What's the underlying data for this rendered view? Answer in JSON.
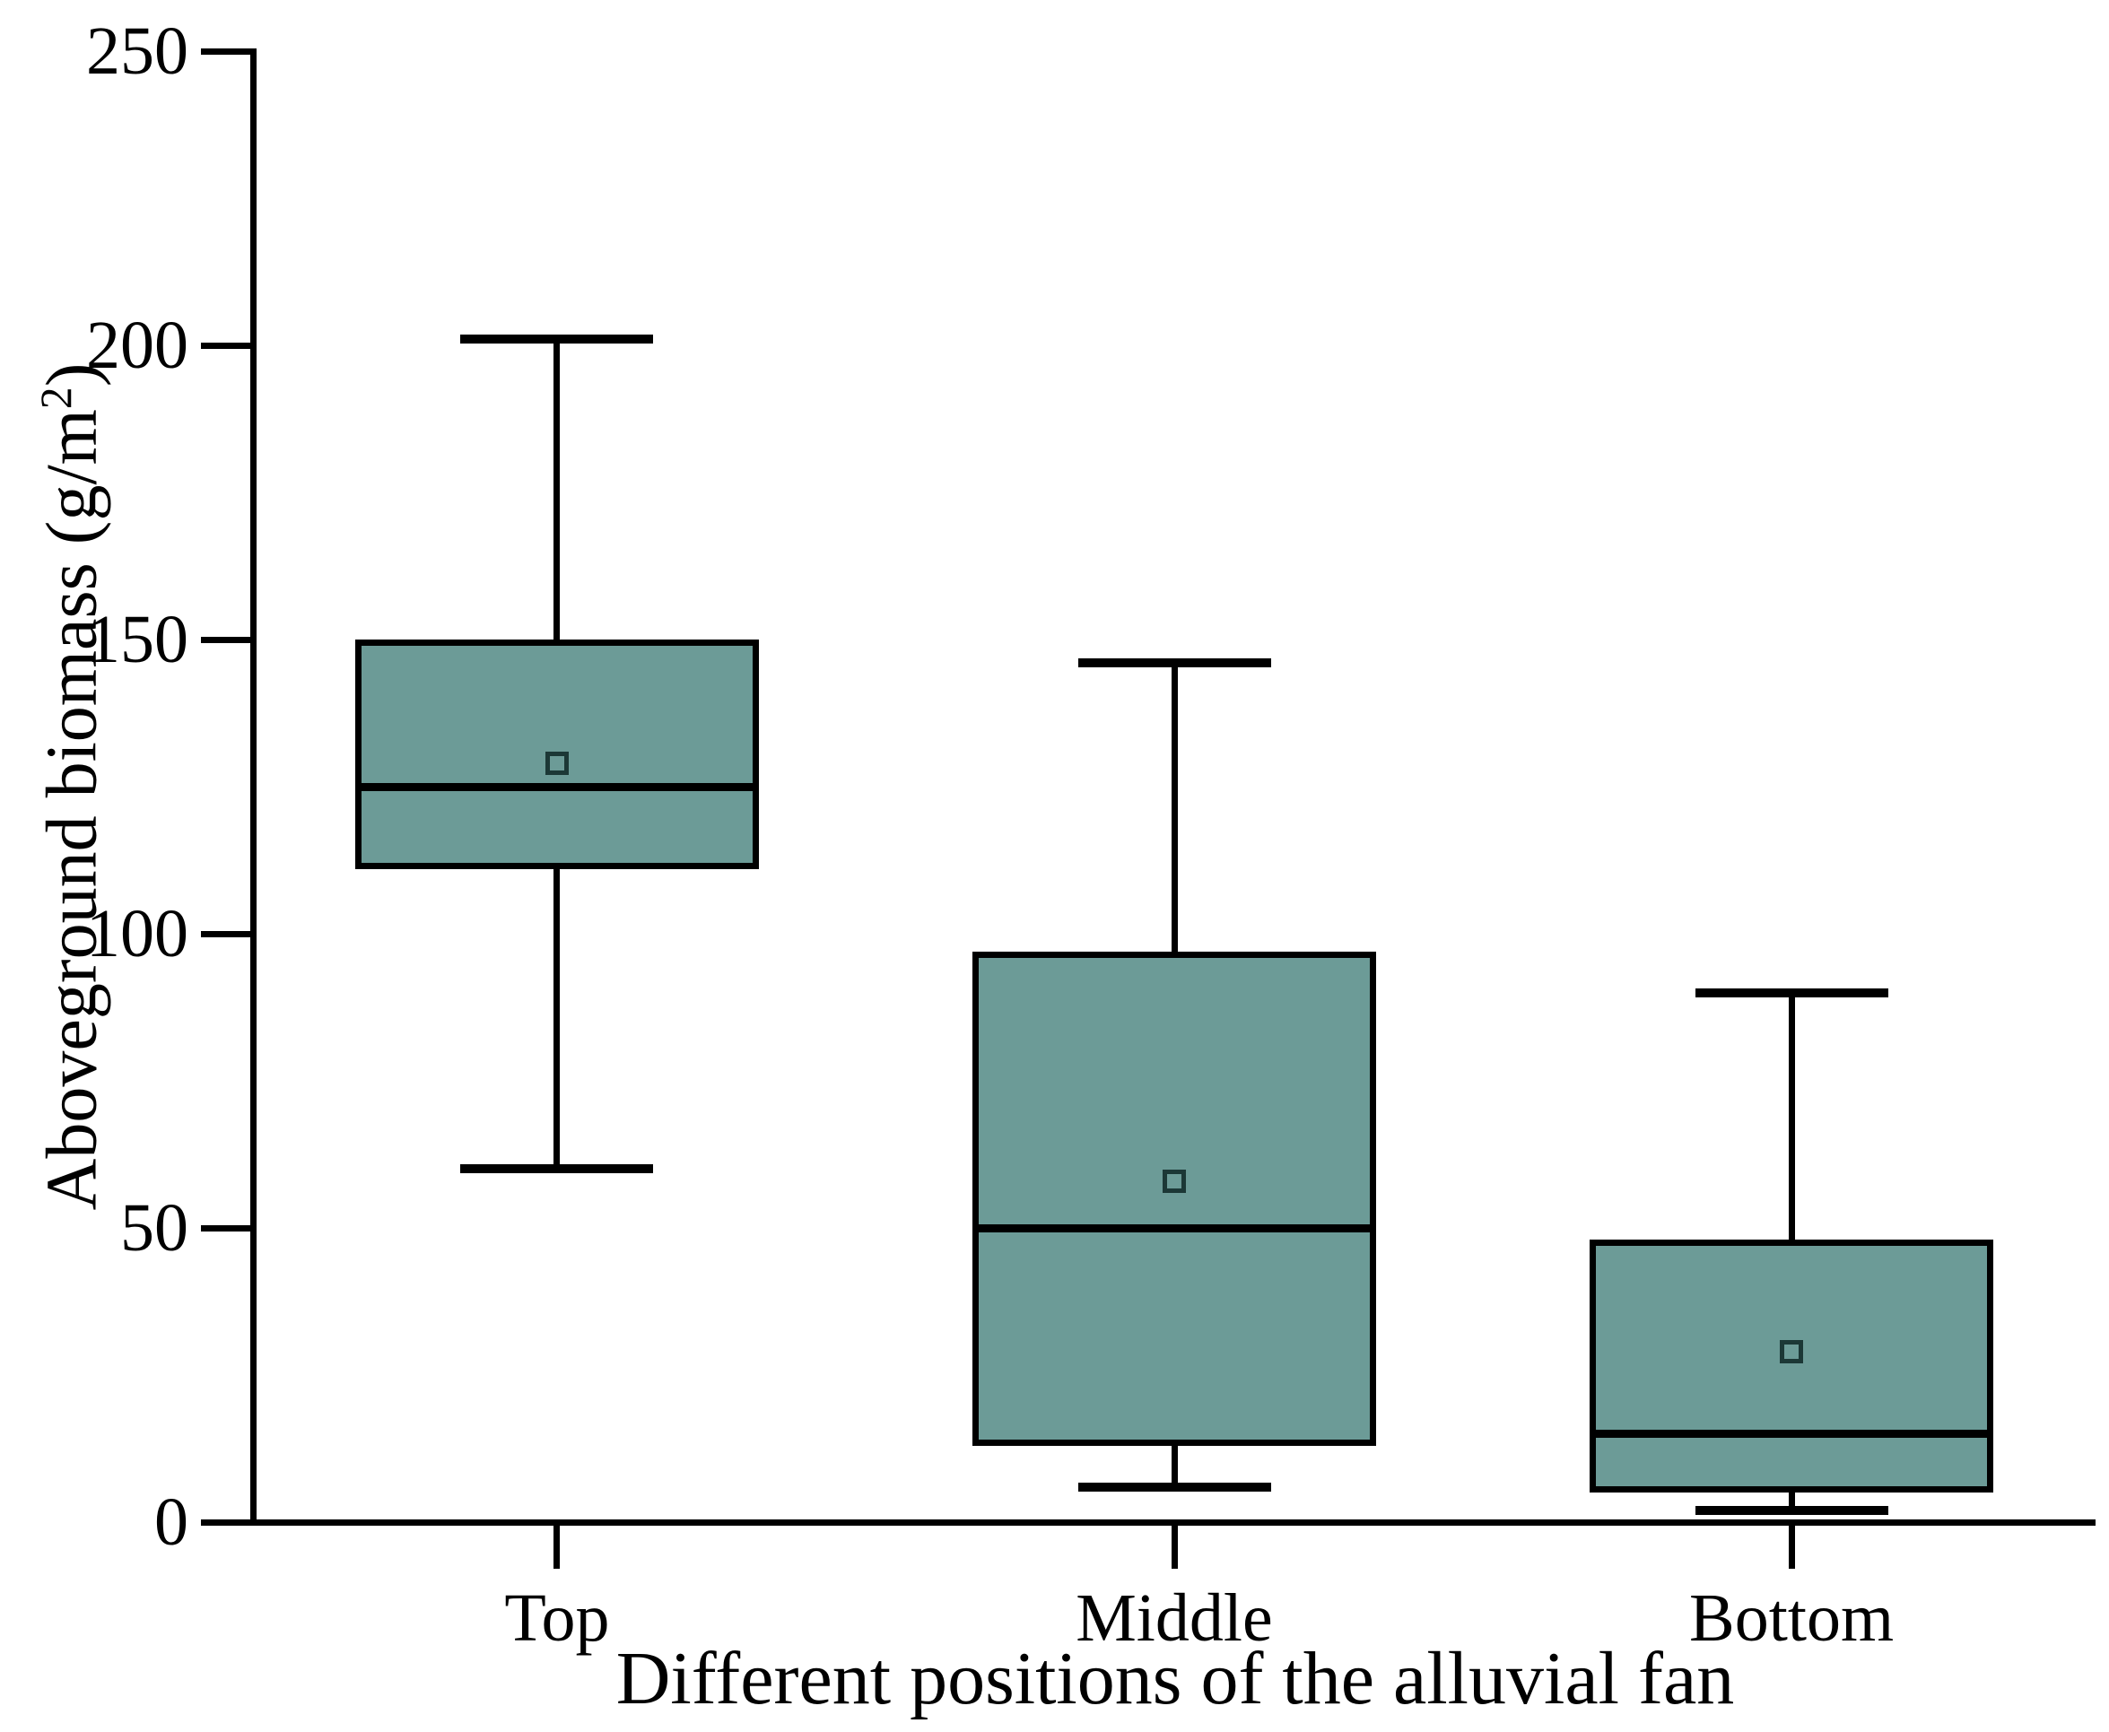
{
  "axes": {
    "y": {
      "label_prefix": "Aboveground biomass (g/m",
      "label_sup": "2",
      "label_suffix": ")"
    },
    "x": {
      "label": "Different positions of the alluvial fan"
    }
  },
  "chart_data": {
    "type": "box",
    "title": "",
    "xlabel": "Different positions of the alluvial fan",
    "ylabel": "Aboveground biomass (g/m2)",
    "categories": [
      "Top",
      "Middle",
      "Bottom"
    ],
    "yticks": [
      0,
      50,
      100,
      150,
      200,
      250
    ],
    "ylim": [
      0,
      250
    ],
    "grid": false,
    "legend": false,
    "box_fill_color": "#6C9B97",
    "line_color": "#000000",
    "mean_marker_color": "#1c3836",
    "mean_marker_shape": "open-square",
    "series": [
      {
        "name": "Top",
        "whisker_low": 60,
        "q1": 111,
        "median": 125,
        "mean": 129,
        "q3": 150,
        "whisker_high": 201
      },
      {
        "name": "Middle",
        "whisker_low": 6,
        "q1": 13,
        "median": 50,
        "mean": 58,
        "q3": 97,
        "whisker_high": 146
      },
      {
        "name": "Bottom",
        "whisker_low": 2,
        "q1": 5,
        "median": 15,
        "mean": 29,
        "q3": 48,
        "whisker_high": 90
      }
    ]
  }
}
